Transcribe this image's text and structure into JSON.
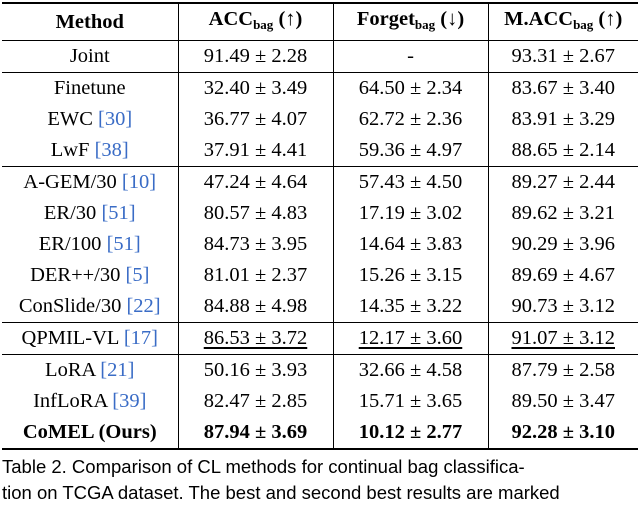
{
  "table": {
    "headers": {
      "method": "Method",
      "acc": {
        "main": "ACC",
        "sub": "bag",
        "arrow": " (↑)"
      },
      "forget": {
        "main": "Forget",
        "sub": "bag",
        "arrow": " (↓)"
      },
      "macc": {
        "main": "M.ACC",
        "sub": "bag",
        "arrow": " (↑)"
      }
    },
    "rows": [
      {
        "method": "Joint",
        "cite": "",
        "acc": "91.49 ± 2.28",
        "forget": "-",
        "macc": "93.31 ± 2.67",
        "style": "",
        "group_start": false
      },
      {
        "method": "Finetune",
        "cite": "",
        "acc": "32.40 ± 3.49",
        "forget": "64.50 ± 2.34",
        "macc": "83.67 ± 3.40",
        "style": "",
        "group_start": true
      },
      {
        "method": "EWC ",
        "cite": "[30]",
        "acc": "36.77 ± 4.07",
        "forget": "62.72 ± 2.36",
        "macc": "83.91 ± 3.29",
        "style": "",
        "group_start": false
      },
      {
        "method": "LwF ",
        "cite": "[38]",
        "acc": "37.91 ± 4.41",
        "forget": "59.36 ± 4.97",
        "macc": "88.65 ± 2.14",
        "style": "",
        "group_start": false
      },
      {
        "method": "A-GEM/30 ",
        "cite": "[10]",
        "acc": "47.24 ± 4.64",
        "forget": "57.43 ± 4.50",
        "macc": "89.27 ± 2.44",
        "style": "",
        "group_start": true
      },
      {
        "method": "ER/30 ",
        "cite": "[51]",
        "acc": "80.57 ± 4.83",
        "forget": "17.19 ± 3.02",
        "macc": "89.62 ± 3.21",
        "style": "",
        "group_start": false
      },
      {
        "method": "ER/100 ",
        "cite": "[51]",
        "acc": "84.73 ± 3.95",
        "forget": "14.64 ± 3.83",
        "macc": "90.29 ± 3.96",
        "style": "",
        "group_start": false
      },
      {
        "method": "DER++/30 ",
        "cite": "[5]",
        "acc": "81.01 ± 2.37",
        "forget": "15.26 ± 3.15",
        "macc": "89.69 ± 4.67",
        "style": "",
        "group_start": false
      },
      {
        "method": "ConSlide/30 ",
        "cite": "[22]",
        "acc": "84.88 ± 4.98",
        "forget": "14.35 ± 3.22",
        "macc": "90.73 ± 3.12",
        "style": "",
        "group_start": false
      },
      {
        "method": "QPMIL-VL ",
        "cite": "[17]",
        "acc": "86.53 ± 3.72",
        "forget": "12.17 ± 3.60",
        "macc": "91.07 ± 3.12",
        "style": "second",
        "group_start": true
      },
      {
        "method": "LoRA ",
        "cite": "[21]",
        "acc": "50.16 ± 3.93",
        "forget": "32.66 ± 4.58",
        "macc": "87.79 ± 2.58",
        "style": "",
        "group_start": true
      },
      {
        "method": "InfLoRA ",
        "cite": "[39]",
        "acc": "82.47 ± 2.85",
        "forget": "15.71 ± 3.65",
        "macc": "89.50 ± 3.47",
        "style": "",
        "group_start": false
      },
      {
        "method": "CoMEL (Ours)",
        "cite": "",
        "acc": "87.94 ± 3.69",
        "forget": "10.12 ± 2.77",
        "macc": "92.28 ± 3.10",
        "style": "best",
        "group_start": false
      }
    ]
  },
  "caption": {
    "line1": "Table 2. Comparison of CL methods for continual bag classifica-",
    "line2": "tion on TCGA dataset. The best and second best results are marked"
  },
  "colors": {
    "citation": "#3a6cc6",
    "text": "#000000"
  }
}
